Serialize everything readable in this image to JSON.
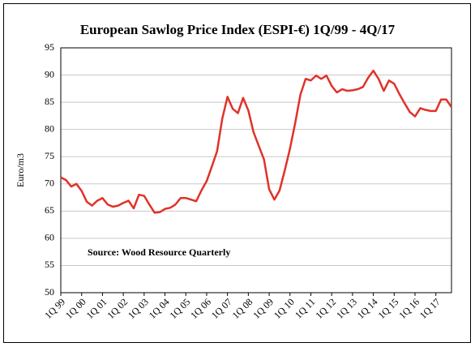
{
  "chart_data": {
    "type": "line",
    "title": "European Sawlog Price Index (ESPI-€) 1Q/99 - 4Q/17",
    "y_label": "Euro/m3",
    "annotation": "Source: Wood Resource Quarterly",
    "categories": [
      "1Q 99",
      null,
      null,
      null,
      "1Q 00",
      null,
      null,
      null,
      "1Q 01",
      null,
      null,
      null,
      "1Q 02",
      null,
      null,
      null,
      "1Q 03",
      null,
      null,
      null,
      "1Q 04",
      null,
      null,
      null,
      "1Q 05",
      null,
      null,
      null,
      "1Q 06",
      null,
      null,
      null,
      "1Q 07",
      null,
      null,
      null,
      "1Q 08",
      null,
      null,
      null,
      "1Q 09",
      null,
      null,
      null,
      "1Q 10",
      null,
      null,
      null,
      "1Q 11",
      null,
      null,
      null,
      "1Q 12",
      null,
      null,
      null,
      "1Q 13",
      null,
      null,
      null,
      "1Q 14",
      null,
      null,
      null,
      "1Q 15",
      null,
      null,
      null,
      "1Q 16",
      null,
      null,
      null,
      "1Q 17",
      null,
      null,
      null
    ],
    "series": [
      {
        "color": "#e03229",
        "values": [
          71.2,
          70.7,
          69.5,
          70.0,
          68.7,
          66.7,
          66.0,
          66.9,
          67.4,
          66.2,
          65.8,
          66.0,
          66.5,
          66.9,
          65.5,
          68.0,
          67.8,
          66.2,
          64.7,
          64.8,
          65.4,
          65.6,
          66.2,
          67.4,
          67.4,
          67.1,
          66.8,
          68.8,
          70.5,
          73.2,
          76.0,
          82.0,
          86.0,
          83.8,
          83.0,
          85.8,
          83.5,
          79.5,
          77.0,
          74.5,
          69.0,
          67.1,
          68.8,
          72.5,
          76.5,
          81.2,
          86.4,
          89.3,
          89.0,
          89.9,
          89.3,
          89.9,
          88.0,
          86.8,
          87.4,
          87.1,
          87.2,
          87.4,
          87.8,
          89.5,
          90.8,
          89.3,
          87.1,
          89.0,
          88.4,
          86.5,
          84.8,
          83.2,
          82.4,
          83.9,
          83.6,
          83.4,
          83.4,
          85.5,
          85.5,
          84.1
        ]
      }
    ],
    "ylim": [
      50,
      95
    ],
    "yticks": [
      50,
      55,
      60,
      65,
      70,
      75,
      80,
      85,
      90,
      95
    ],
    "grid": true
  }
}
